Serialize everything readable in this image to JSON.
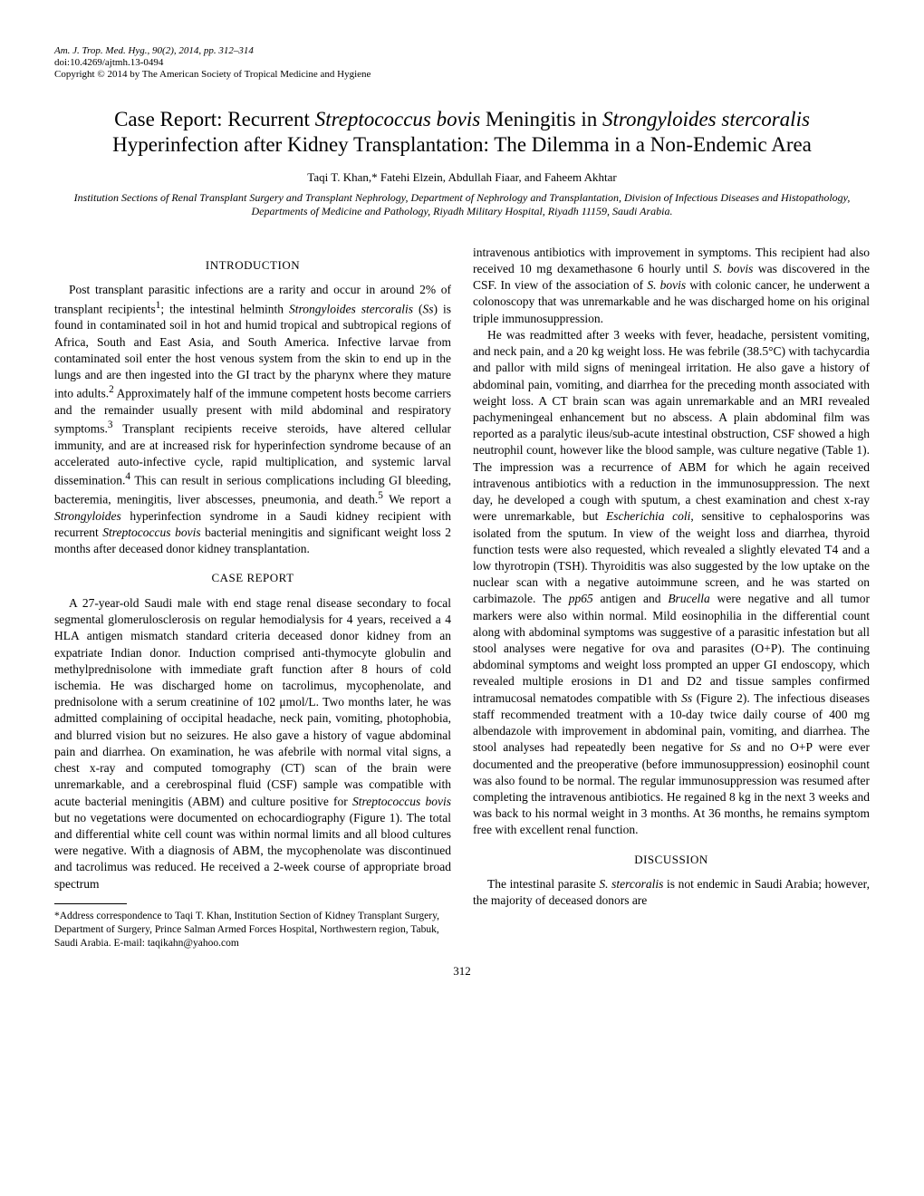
{
  "header": {
    "journal": "Am. J. Trop. Med. Hyg., 90(2), 2014, pp. 312–314",
    "doi": "doi:10.4269/ajtmh.13-0494",
    "copyright": "Copyright © 2014 by The American Society of Tropical Medicine and Hygiene"
  },
  "title_prefix": "Case Report: Recurrent ",
  "title_i1": "Streptococcus bovis",
  "title_mid1": " Meningitis in ",
  "title_i2": "Strongyloides stercoralis",
  "title_line2": "Hyperinfection after Kidney Transplantation: The Dilemma in a Non-Endemic Area",
  "authors": "Taqi T. Khan,* Fatehi Elzein, Abdullah Fiaar, and Faheem Akhtar",
  "affiliation": "Institution Sections of Renal Transplant Surgery and Transplant Nephrology, Department of Nephrology and Transplantation, Division of Infectious Diseases and Histopathology, Departments of Medicine and Pathology, Riyadh Military Hospital, Riyadh 11159, Saudi Arabia.",
  "sections": {
    "intro_heading": "INTRODUCTION",
    "case_heading": "CASE REPORT",
    "discussion_heading": "DISCUSSION"
  },
  "intro": {
    "p1a": "Post transplant parasitic infections are a rarity and occur in around 2% of transplant recipients",
    "p1b": "; the intestinal helminth ",
    "p1c": "Strongyloides stercoralis",
    "p1d": " (",
    "p1e": "Ss",
    "p1f": ") is found in contaminated soil in hot and humid tropical and subtropical regions of Africa, South and East Asia, and South America. Infective larvae from contaminated soil enter the host venous system from the skin to end up in the lungs and are then ingested into the GI tract by the pharynx where they mature into adults.",
    "p1g": " Approximately half of the immune competent hosts become carriers and the remainder usually present with mild abdominal and respiratory symptoms.",
    "p1h": " Transplant recipients receive steroids, have altered cellular immunity, and are at increased risk for hyperinfection syndrome because of an accelerated auto-infective cycle, rapid multiplication, and systemic larval dissemination.",
    "p1i": " This can result in serious complications including GI bleeding, bacteremia, meningitis, liver abscesses, pneumonia, and death.",
    "p1j": " We report a ",
    "p1k": "Strongyloides",
    "p1l": " hyperinfection syndrome in a Saudi kidney recipient with recurrent ",
    "p1m": "Streptococcus bovis",
    "p1n": " bacterial meningitis and significant weight loss 2 months after deceased donor kidney transplantation."
  },
  "case": {
    "p1a": "A 27-year-old Saudi male with end stage renal disease secondary to focal segmental glomerulosclerosis on regular hemodialysis for 4 years, received a 4 HLA antigen mismatch standard criteria deceased donor kidney from an expatriate Indian donor. Induction comprised anti-thymocyte globulin and methylprednisolone with immediate graft function after 8 hours of cold ischemia. He was discharged home on tacrolimus, mycophenolate, and prednisolone with a serum creatinine of 102 μmol/L. Two months later, he was admitted complaining of occipital headache, neck pain, vomiting, photophobia, and blurred vision but no seizures. He also gave a history of vague abdominal pain and diarrhea. On examination, he was afebrile with normal vital signs, a chest x-ray and computed tomography (CT) scan of the brain were unremarkable, and a cerebrospinal fluid (CSF) sample was compatible with acute bacterial meningitis (ABM) and culture positive for ",
    "p1b": "Streptococcus bovis",
    "p1c": " but no vegetations were documented on echocardiography (Figure 1). The total and differential white cell count was within normal limits and all blood cultures were negative. With a diagnosis of ABM, the mycophenolate was discontinued and tacrolimus was reduced. He received a 2-week course of appropriate broad spectrum",
    "p1d": "intravenous antibiotics with improvement in symptoms. This recipient had also received 10 mg dexamethasone 6 hourly until ",
    "p1e": "S. bovis",
    "p1f": " was discovered in the CSF. In view of the association of ",
    "p1g": "S. bovis",
    "p1h": " with colonic cancer, he underwent a colonoscopy that was unremarkable and he was discharged home on his original triple immunosuppression.",
    "p2a": "He was readmitted after 3 weeks with fever, headache, persistent vomiting, and neck pain, and a 20 kg weight loss. He was febrile (38.5°C) with tachycardia and pallor with mild signs of meningeal irritation. He also gave a history of abdominal pain, vomiting, and diarrhea for the preceding month associated with weight loss. A CT brain scan was again unremarkable and an MRI revealed pachymeningeal enhancement but no abscess. A plain abdominal film was reported as a paralytic ileus/sub-acute intestinal obstruction, CSF showed a high neutrophil count, however like the blood sample, was culture negative (Table 1). The impression was a recurrence of ABM for which he again received intravenous antibiotics with a reduction in the immunosuppression. The next day, he developed a cough with sputum, a chest examination and chest x-ray were unremarkable, but ",
    "p2b": "Escherichia coli",
    "p2c": ", sensitive to cephalosporins was isolated from the sputum. In view of the weight loss and diarrhea, thyroid function tests were also requested, which revealed a slightly elevated T4 and a low thyrotropin (TSH). Thyroiditis was also suggested by the low uptake on the nuclear scan with a negative autoimmune screen, and he was started on carbimazole. The ",
    "p2d": "pp65",
    "p2e": " antigen and ",
    "p2f": "Brucella",
    "p2g": " were negative and all tumor markers were also within normal. Mild eosinophilia in the differential count along with abdominal symptoms was suggestive of a parasitic infestation but all stool analyses were negative for ova and parasites (O+P). The continuing abdominal symptoms and weight loss prompted an upper GI endoscopy, which revealed multiple erosions in D1 and D2 and tissue samples confirmed intramucosal nematodes compatible with ",
    "p2h": "Ss",
    "p2i": " (Figure 2). The infectious diseases staff recommended treatment with a 10-day twice daily course of 400 mg albendazole with improvement in abdominal pain, vomiting, and diarrhea. The stool analyses had repeatedly been negative for ",
    "p2j": "Ss",
    "p2k": " and no O+P were ever documented and the preoperative (before immunosuppression) eosinophil count was also found to be normal. The regular immunosuppression was resumed after completing the intravenous antibiotics. He regained 8 kg in the next 3 weeks and was back to his normal weight in 3 months. At 36 months, he remains symptom free with excellent renal function."
  },
  "discussion": {
    "p1a": "The intestinal parasite ",
    "p1b": "S. stercoralis",
    "p1c": " is not endemic in Saudi Arabia; however, the majority of deceased donors are"
  },
  "correspondence": "*Address correspondence to Taqi T. Khan, Institution Section of Kidney Transplant Surgery, Department of Surgery, Prince Salman Armed Forces Hospital, Northwestern region, Tabuk, Saudi Arabia. E-mail: taqikahn@yahoo.com",
  "page_number": "312",
  "refs": {
    "r1": "1",
    "r2": "2",
    "r3": "3",
    "r4": "4",
    "r5": "5"
  }
}
